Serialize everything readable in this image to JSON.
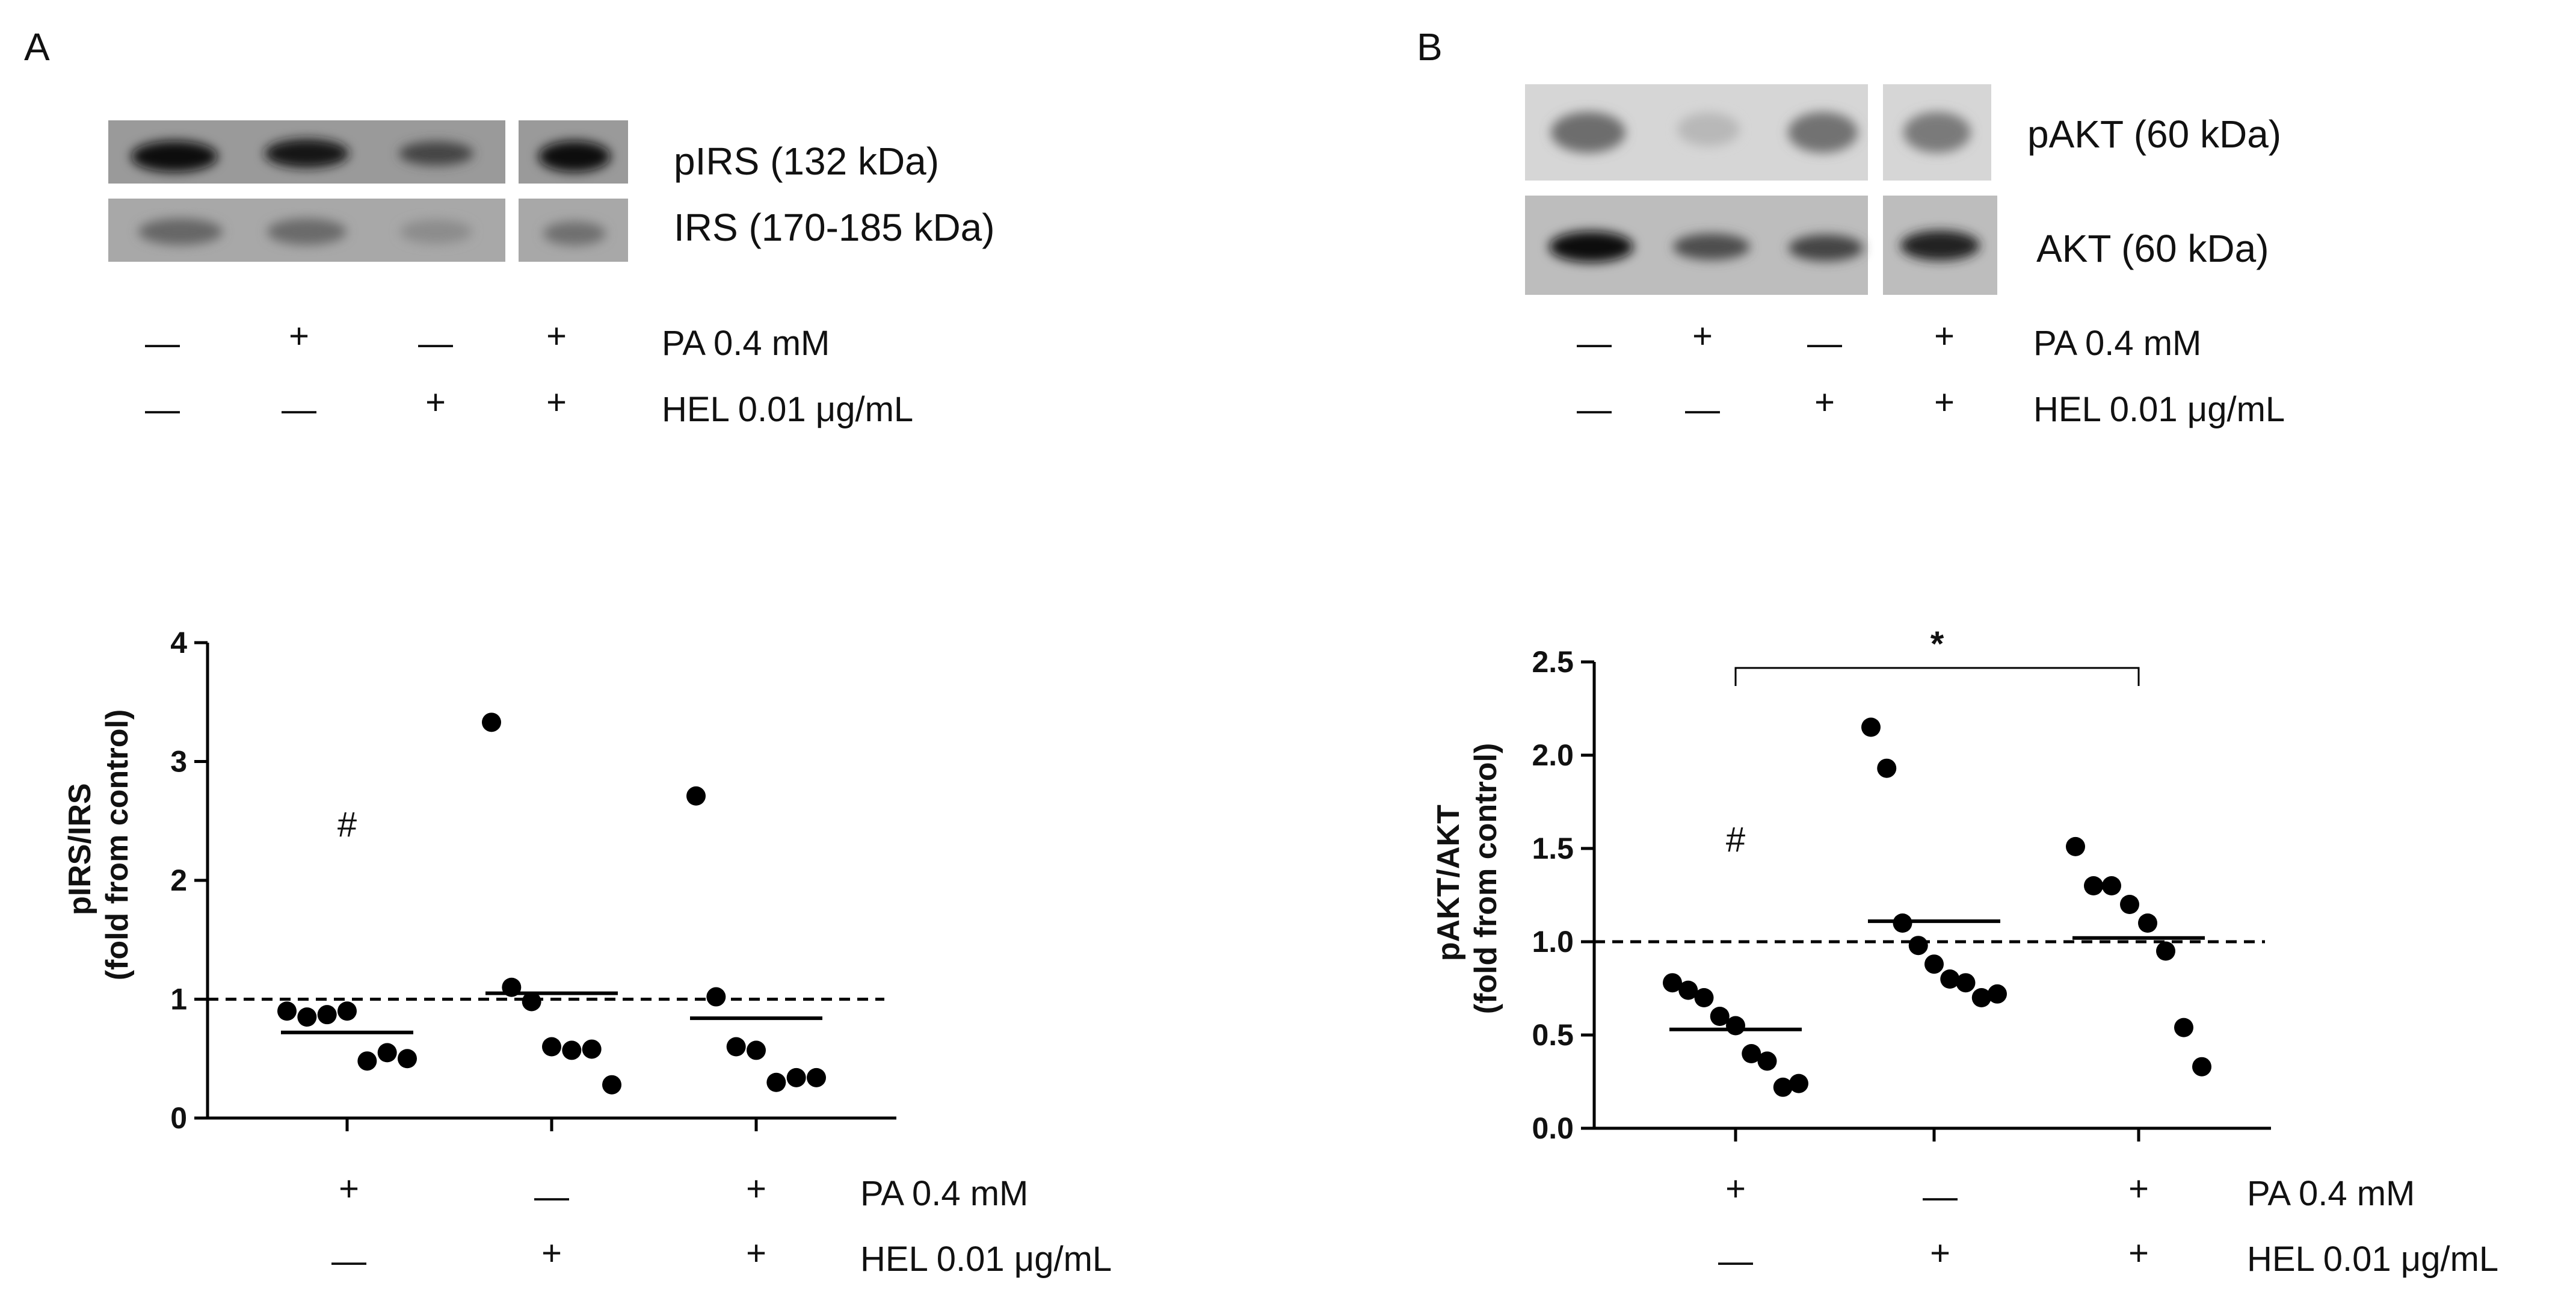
{
  "panel_a": {
    "letter": "A",
    "blot_labels": [
      "pIRS (132 kDa)",
      "IRS (170-185 kDa)"
    ],
    "treatment_rows": [
      {
        "label": "PA 0.4 mM",
        "signs": [
          "—",
          "+",
          "—",
          "+"
        ]
      },
      {
        "label": "HEL 0.01 μg/mL",
        "signs": [
          "—",
          "—",
          "+",
          "+"
        ]
      }
    ],
    "axis_treatment_rows": [
      {
        "label": "PA 0.4 mM",
        "signs": [
          "+",
          "—",
          "+"
        ]
      },
      {
        "label": "HEL 0.01 μg/mL",
        "signs": [
          "—",
          "+",
          "+"
        ]
      }
    ],
    "significance_marks": [
      {
        "group": 0,
        "symbol": "#"
      }
    ]
  },
  "panel_b": {
    "letter": "B",
    "blot_labels": [
      "pAKT (60 kDa)",
      "AKT (60 kDa)"
    ],
    "treatment_rows": [
      {
        "label": "PA 0.4 mM",
        "signs": [
          "—",
          "+",
          "—",
          "+"
        ]
      },
      {
        "label": "HEL 0.01 μg/mL",
        "signs": [
          "—",
          "—",
          "+",
          "+"
        ]
      }
    ],
    "axis_treatment_rows": [
      {
        "label": "PA 0.4 mM",
        "signs": [
          "+",
          "—",
          "+"
        ]
      },
      {
        "label": "HEL 0.01 μg/mL",
        "signs": [
          "—",
          "+",
          "+"
        ]
      }
    ],
    "significance_marks": [
      {
        "group": 0,
        "symbol": "#"
      }
    ],
    "bracket": {
      "from_group": 0,
      "to_group": 2,
      "symbol": "*"
    }
  },
  "chart_data": [
    {
      "type": "scatter",
      "title": "",
      "ylabel": "pIRS/IRS\n(fold from control)",
      "ylim": [
        0,
        4
      ],
      "yticks": [
        0,
        1,
        2,
        3,
        4
      ],
      "reference_line": 1.0,
      "series": [
        {
          "values": [
            0.9,
            0.85,
            0.87,
            0.9,
            0.48,
            0.55,
            0.5
          ],
          "median": 0.72
        },
        {
          "values": [
            3.33,
            1.1,
            0.98,
            0.6,
            0.57,
            0.58,
            0.28
          ],
          "median": 1.05
        },
        {
          "values": [
            2.71,
            1.02,
            0.6,
            0.57,
            0.3,
            0.34,
            0.34
          ],
          "median": 0.84
        }
      ]
    },
    {
      "type": "scatter",
      "title": "",
      "ylabel": "pAKT/AKT\n(fold from control)",
      "ylim": [
        0,
        2.5
      ],
      "yticks": [
        "0.0",
        "0.5",
        "1.0",
        "1.5",
        "2.0",
        "2.5"
      ],
      "reference_line": 1.0,
      "series": [
        {
          "values": [
            0.78,
            0.74,
            0.7,
            0.6,
            0.55,
            0.4,
            0.36,
            0.22,
            0.24
          ],
          "median": 0.53
        },
        {
          "values": [
            2.15,
            1.93,
            1.1,
            0.98,
            0.88,
            0.8,
            0.78,
            0.7,
            0.72
          ],
          "median": 1.11
        },
        {
          "values": [
            1.51,
            1.3,
            1.3,
            1.2,
            1.1,
            0.95,
            0.54,
            0.33
          ],
          "median": 1.02
        }
      ]
    }
  ]
}
